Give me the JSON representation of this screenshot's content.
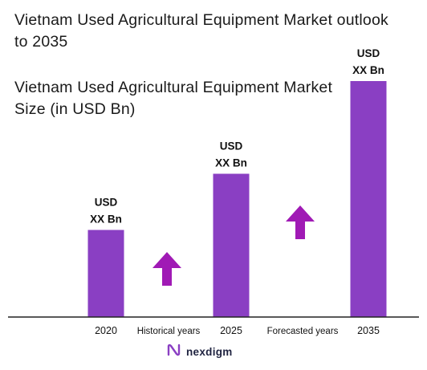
{
  "header": {
    "title": "Vietnam Used Agricultural Equipment Market outlook to 2035",
    "subtitle": "Vietnam Used Agricultural Equipment Market Size (in USD Bn)"
  },
  "brand": {
    "name": "nexdigm",
    "logo_icon": "nexdigm-logo-icon"
  },
  "colors": {
    "bar": "#8a3fc3",
    "arrow": "#a01ab5",
    "axis": "#222222"
  },
  "chart_data": {
    "type": "bar",
    "title": "Vietnam Used Agricultural Equipment Market Size (in USD Bn)",
    "categories": [
      "2020",
      "2025",
      "2035"
    ],
    "values": [
      3.1,
      5.1,
      8.4
    ],
    "value_labels": [
      [
        "USD",
        "XX Bn"
      ],
      [
        "USD",
        "XX Bn"
      ],
      [
        "USD",
        "XX Bn"
      ]
    ],
    "period_labels": [
      "Historical years",
      "Forecasted years"
    ],
    "ylim": [
      0,
      10
    ],
    "grid": false,
    "legend": "none",
    "growth_arrows": [
      "up",
      "up"
    ]
  }
}
